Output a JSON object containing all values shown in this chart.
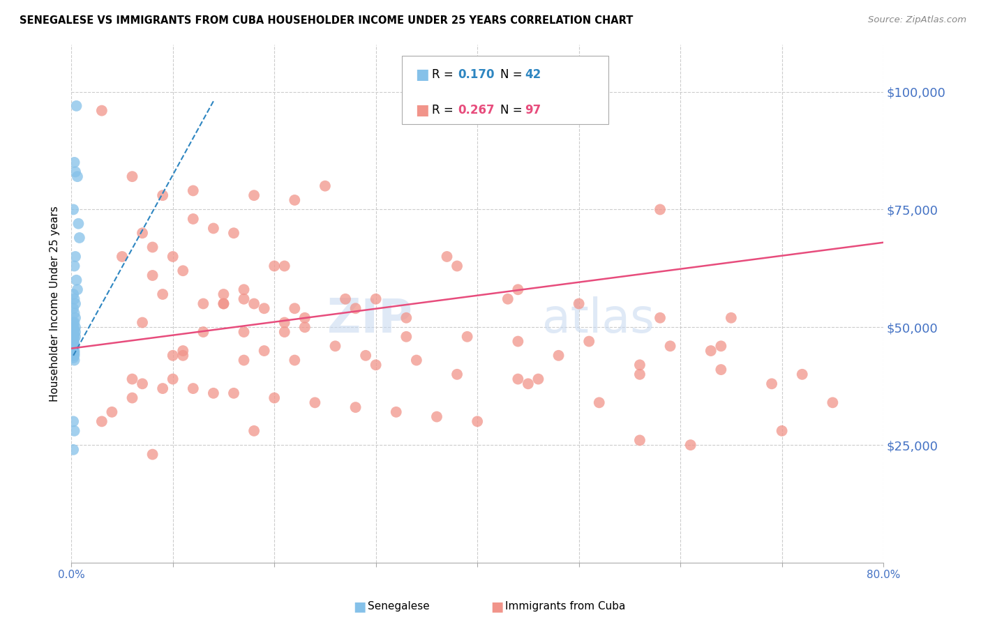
{
  "title": "SENEGALESE VS IMMIGRANTS FROM CUBA HOUSEHOLDER INCOME UNDER 25 YEARS CORRELATION CHART",
  "source": "Source: ZipAtlas.com",
  "ylabel": "Householder Income Under 25 years",
  "xlim": [
    0.0,
    0.8
  ],
  "ylim": [
    0,
    110000
  ],
  "yticks": [
    0,
    25000,
    50000,
    75000,
    100000
  ],
  "legend_blue_r": "0.170",
  "legend_blue_n": "42",
  "legend_pink_r": "0.267",
  "legend_pink_n": "97",
  "blue_color": "#85C1E9",
  "pink_color": "#F1948A",
  "blue_line_color": "#2E86C1",
  "pink_line_color": "#E74C7C",
  "blue_text_color": "#2E86C1",
  "pink_text_color": "#E74C7C",
  "axis_color": "#4472C4",
  "background_color": "#FFFFFF",
  "grid_color": "#CCCCCC",
  "senegalese_x": [
    0.005,
    0.003,
    0.004,
    0.006,
    0.002,
    0.007,
    0.008,
    0.004,
    0.003,
    0.005,
    0.006,
    0.002,
    0.003,
    0.004,
    0.002,
    0.003,
    0.004,
    0.002,
    0.003,
    0.004,
    0.002,
    0.003,
    0.004,
    0.002,
    0.003,
    0.004,
    0.002,
    0.003,
    0.002,
    0.003,
    0.003,
    0.002,
    0.003,
    0.002,
    0.003,
    0.002,
    0.003,
    0.002,
    0.003,
    0.002,
    0.003,
    0.002
  ],
  "senegalese_y": [
    97000,
    85000,
    83000,
    82000,
    75000,
    72000,
    69000,
    65000,
    63000,
    60000,
    58000,
    57000,
    56000,
    55000,
    54000,
    53000,
    52000,
    51000,
    51000,
    50000,
    50000,
    49500,
    49000,
    49000,
    48500,
    48000,
    48000,
    47500,
    47000,
    46500,
    46000,
    45500,
    45000,
    45000,
    44500,
    44000,
    44000,
    43500,
    43000,
    30000,
    28000,
    24000
  ],
  "cuba_x": [
    0.38,
    0.44,
    0.03,
    0.5,
    0.06,
    0.28,
    0.25,
    0.12,
    0.18,
    0.22,
    0.09,
    0.58,
    0.12,
    0.16,
    0.1,
    0.13,
    0.14,
    0.07,
    0.2,
    0.15,
    0.08,
    0.3,
    0.05,
    0.17,
    0.21,
    0.19,
    0.11,
    0.08,
    0.15,
    0.18,
    0.22,
    0.26,
    0.15,
    0.09,
    0.23,
    0.17,
    0.11,
    0.27,
    0.33,
    0.19,
    0.43,
    0.37,
    0.13,
    0.17,
    0.21,
    0.07,
    0.39,
    0.11,
    0.23,
    0.17,
    0.21,
    0.06,
    0.33,
    0.29,
    0.44,
    0.51,
    0.14,
    0.59,
    0.64,
    0.69,
    0.63,
    0.56,
    0.48,
    0.1,
    0.34,
    0.58,
    0.22,
    0.56,
    0.3,
    0.64,
    0.38,
    0.72,
    0.46,
    0.1,
    0.45,
    0.07,
    0.09,
    0.12,
    0.16,
    0.2,
    0.24,
    0.28,
    0.32,
    0.36,
    0.4,
    0.44,
    0.18,
    0.52,
    0.56,
    0.61,
    0.75,
    0.7,
    0.65,
    0.03,
    0.04,
    0.06,
    0.08
  ],
  "cuba_y": [
    63000,
    58000,
    96000,
    55000,
    82000,
    54000,
    80000,
    79000,
    55000,
    77000,
    78000,
    52000,
    73000,
    70000,
    65000,
    55000,
    71000,
    70000,
    63000,
    55000,
    67000,
    56000,
    65000,
    58000,
    63000,
    45000,
    62000,
    61000,
    55000,
    78000,
    54000,
    46000,
    57000,
    57000,
    52000,
    56000,
    45000,
    56000,
    52000,
    54000,
    56000,
    65000,
    49000,
    43000,
    51000,
    51000,
    48000,
    44000,
    50000,
    49000,
    49000,
    39000,
    48000,
    44000,
    47000,
    47000,
    36000,
    46000,
    46000,
    38000,
    45000,
    40000,
    44000,
    44000,
    43000,
    75000,
    43000,
    42000,
    42000,
    41000,
    40000,
    40000,
    39000,
    39000,
    38000,
    38000,
    37000,
    37000,
    36000,
    35000,
    34000,
    33000,
    32000,
    31000,
    30000,
    39000,
    28000,
    34000,
    26000,
    25000,
    34000,
    28000,
    52000,
    30000,
    32000,
    35000,
    23000
  ],
  "pink_line_x0": 0.0,
  "pink_line_y0": 45500,
  "pink_line_x1": 0.8,
  "pink_line_y1": 68000,
  "blue_line_x0": 0.002,
  "blue_line_y0": 44000,
  "blue_line_x1": 0.14,
  "blue_line_y1": 98000
}
